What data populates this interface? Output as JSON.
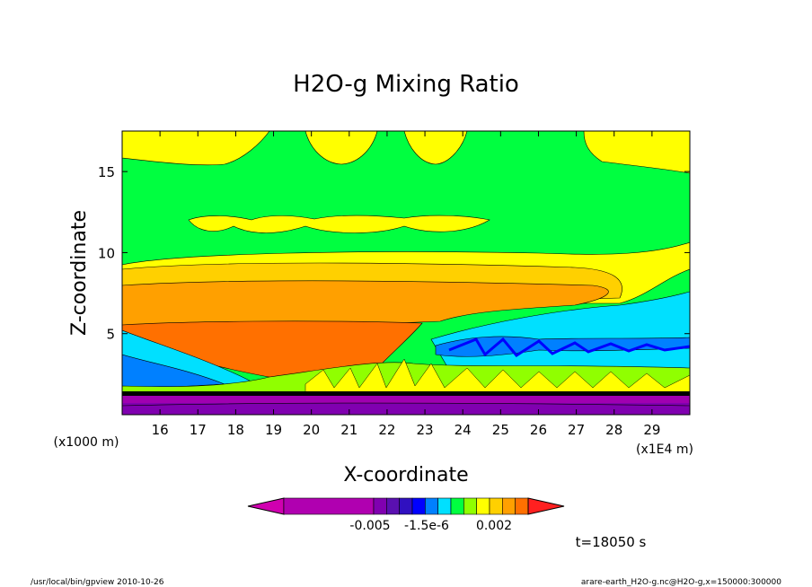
{
  "chart_data": {
    "type": "heatmap",
    "title": "H2O-g Mixing Ratio",
    "xlabel": "X-coordinate",
    "ylabel": "Z-coordinate",
    "x_unit": "(x1E4 m)",
    "y_unit": "(x1000 m)",
    "xlim": [
      15,
      30
    ],
    "ylim": [
      0,
      17.5
    ],
    "x_ticks": [
      "16",
      "17",
      "18",
      "19",
      "20",
      "21",
      "22",
      "23",
      "24",
      "25",
      "26",
      "27",
      "28",
      "29"
    ],
    "y_ticks": [
      "5",
      "10",
      "15"
    ],
    "colorbar": {
      "labels": [
        "-0.005",
        "-1.5e-6",
        "0.002"
      ],
      "colors": [
        "#d000b0",
        "#b000b0",
        "#8000b0",
        "#5a10b0",
        "#3010c0",
        "#0000ff",
        "#0080ff",
        "#00e0ff",
        "#00ff40",
        "#90ff00",
        "#ffff00",
        "#ffd000",
        "#ffa000",
        "#ff7000",
        "#ff2020"
      ]
    },
    "regions": [
      {
        "name": "band-0",
        "color": "#8000b0",
        "z": [
          0,
          0.6
        ]
      },
      {
        "name": "band-1",
        "color": "#a000b0",
        "z": [
          0.6,
          1.3
        ]
      },
      {
        "name": "band-2",
        "color": "#ffa000",
        "z": [
          1.6,
          9.2
        ]
      },
      {
        "name": "band-3",
        "color": "#ff7000",
        "z": [
          4.2,
          8.0
        ]
      },
      {
        "name": "band-4",
        "color": "#00ff40",
        "z": [
          9.2,
          17.5
        ]
      },
      {
        "name": "band-5",
        "color": "#00e0ff",
        "z": [
          2.8,
          6.5
        ]
      },
      {
        "name": "band-6",
        "color": "#ffff00",
        "z": [
          15.5,
          17.5
        ]
      }
    ],
    "annotation_time": "t=18050 s"
  },
  "footer": {
    "left": "/usr/local/bin/gpview  2010-10-26",
    "right": "arare-earth_H2O-g.nc@H2O-g,x=150000:300000"
  }
}
